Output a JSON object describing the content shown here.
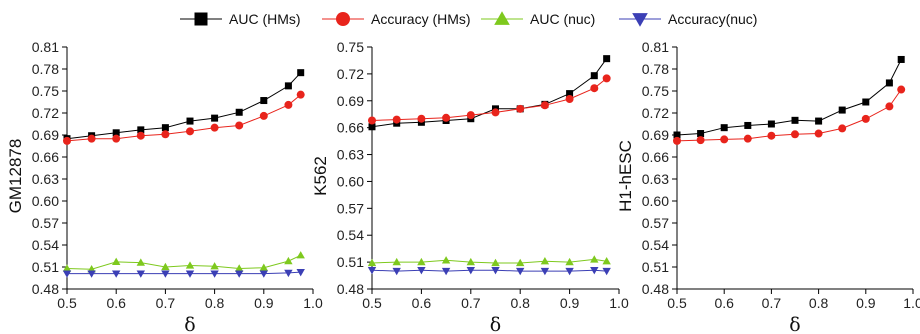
{
  "chart_data": [
    {
      "type": "line",
      "ylabel": "GM12878",
      "xlabel": "δ",
      "xlim": [
        0.5,
        1.0
      ],
      "ylim": [
        0.48,
        0.81
      ],
      "xticks": [
        "0.5",
        "0.6",
        "0.7",
        "0.8",
        "0.9",
        "1.0"
      ],
      "yticks": [
        "0.48",
        "0.51",
        "0.54",
        "0.57",
        "0.60",
        "0.63",
        "0.66",
        "0.69",
        "0.72",
        "0.75",
        "0.78",
        "0.81"
      ],
      "x": [
        0.5,
        0.55,
        0.6,
        0.65,
        0.7,
        0.75,
        0.8,
        0.85,
        0.9,
        0.95,
        0.975
      ],
      "series": [
        {
          "name": "AUC (HMs)",
          "color": "#000000",
          "marker": "square",
          "values": [
            0.685,
            0.689,
            0.693,
            0.697,
            0.7,
            0.709,
            0.713,
            0.721,
            0.737,
            0.757,
            0.775
          ]
        },
        {
          "name": "Accuracy (HMs)",
          "color": "#e8241c",
          "marker": "circle",
          "values": [
            0.682,
            0.685,
            0.685,
            0.689,
            0.691,
            0.695,
            0.7,
            0.703,
            0.716,
            0.731,
            0.745
          ]
        },
        {
          "name": "AUC (nuc)",
          "color": "#7ec91e",
          "marker": "triangle-up",
          "values": [
            0.508,
            0.507,
            0.517,
            0.516,
            0.51,
            0.512,
            0.511,
            0.508,
            0.509,
            0.518,
            0.526
          ]
        },
        {
          "name": "Accuracy(nuc)",
          "color": "#3b3fb5",
          "marker": "triangle-down",
          "values": [
            0.501,
            0.501,
            0.501,
            0.501,
            0.501,
            0.501,
            0.501,
            0.501,
            0.501,
            0.502,
            0.503
          ]
        }
      ]
    },
    {
      "type": "line",
      "ylabel": "K562",
      "xlabel": "δ",
      "xlim": [
        0.5,
        1.0
      ],
      "ylim": [
        0.48,
        0.75
      ],
      "xticks": [
        "0.5",
        "0.6",
        "0.7",
        "0.8",
        "0.9",
        "1.0"
      ],
      "yticks": [
        "0.48",
        "0.51",
        "0.54",
        "0.57",
        "0.60",
        "0.63",
        "0.66",
        "0.69",
        "0.72",
        "0.75"
      ],
      "x": [
        0.5,
        0.55,
        0.6,
        0.65,
        0.7,
        0.75,
        0.8,
        0.85,
        0.9,
        0.95,
        0.975
      ],
      "series": [
        {
          "name": "AUC (HMs)",
          "color": "#000000",
          "marker": "square",
          "values": [
            0.661,
            0.665,
            0.666,
            0.668,
            0.67,
            0.681,
            0.681,
            0.686,
            0.698,
            0.718,
            0.737
          ]
        },
        {
          "name": "Accuracy (HMs)",
          "color": "#e8241c",
          "marker": "circle",
          "values": [
            0.668,
            0.669,
            0.67,
            0.671,
            0.674,
            0.677,
            0.681,
            0.685,
            0.692,
            0.704,
            0.715
          ]
        },
        {
          "name": "AUC (nuc)",
          "color": "#7ec91e",
          "marker": "triangle-up",
          "values": [
            0.509,
            0.51,
            0.51,
            0.512,
            0.51,
            0.509,
            0.509,
            0.511,
            0.51,
            0.513,
            0.511
          ]
        },
        {
          "name": "Accuracy(nuc)",
          "color": "#3b3fb5",
          "marker": "triangle-down",
          "values": [
            0.501,
            0.5,
            0.501,
            0.5,
            0.501,
            0.501,
            0.5,
            0.5,
            0.5,
            0.501,
            0.5
          ]
        }
      ]
    },
    {
      "type": "line",
      "ylabel": "H1-hESC",
      "xlabel": "δ",
      "xlim": [
        0.5,
        1.0
      ],
      "ylim": [
        0.48,
        0.81
      ],
      "xticks": [
        "0.5",
        "0.6",
        "0.7",
        "0.8",
        "0.9",
        "1.0"
      ],
      "yticks": [
        "0.48",
        "0.51",
        "0.54",
        "0.57",
        "0.60",
        "0.63",
        "0.66",
        "0.69",
        "0.72",
        "0.75",
        "0.78",
        "0.81"
      ],
      "x": [
        0.5,
        0.55,
        0.6,
        0.65,
        0.7,
        0.75,
        0.8,
        0.85,
        0.9,
        0.95,
        0.975
      ],
      "series": [
        {
          "name": "AUC (HMs)",
          "color": "#000000",
          "marker": "square",
          "values": [
            0.69,
            0.692,
            0.7,
            0.703,
            0.705,
            0.71,
            0.709,
            0.724,
            0.735,
            0.761,
            0.793
          ]
        },
        {
          "name": "Accuracy (HMs)",
          "color": "#e8241c",
          "marker": "circle",
          "values": [
            0.682,
            0.683,
            0.684,
            0.685,
            0.689,
            0.691,
            0.692,
            0.699,
            0.712,
            0.729,
            0.752
          ]
        }
      ]
    }
  ]
}
